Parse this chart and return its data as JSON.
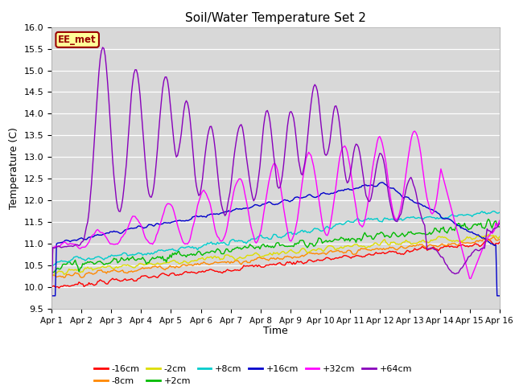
{
  "title": "Soil/Water Temperature Set 2",
  "xlabel": "Time",
  "ylabel": "Temperature (C)",
  "ylim": [
    9.5,
    16.0
  ],
  "yticks": [
    9.5,
    10.0,
    10.5,
    11.0,
    11.5,
    12.0,
    12.5,
    13.0,
    13.5,
    14.0,
    14.5,
    15.0,
    15.5,
    16.0
  ],
  "xtick_labels": [
    "Apr 1",
    "Apr 2",
    "Apr 3",
    "Apr 4",
    "Apr 5",
    "Apr 6",
    "Apr 7",
    "Apr 8",
    "Apr 9",
    "Apr 10",
    "Apr 11",
    "Apr 12",
    "Apr 13",
    "Apr 14",
    "Apr 15",
    "Apr 16"
  ],
  "series_order": [
    "-16cm",
    "-8cm",
    "-2cm",
    "+2cm",
    "+8cm",
    "+16cm",
    "+32cm",
    "+64cm"
  ],
  "series_colors": {
    "-16cm": "#ff0000",
    "-8cm": "#ff8800",
    "-2cm": "#dddd00",
    "+2cm": "#00bb00",
    "+8cm": "#00cccc",
    "+16cm": "#0000cc",
    "+32cm": "#ff00ff",
    "+64cm": "#8800bb"
  },
  "lw": 1.0,
  "legend_label": "EE_met",
  "legend_bg": "#ffff99",
  "legend_border": "#990000",
  "plot_bg": "#d8d8d8"
}
